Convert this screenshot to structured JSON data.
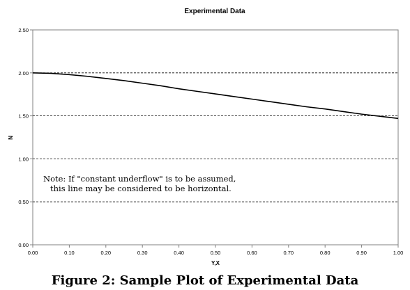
{
  "chart_data": {
    "type": "line",
    "title": "Experimental Data",
    "xlabel": "Y,X",
    "ylabel": "N",
    "xlim": [
      0.0,
      1.0
    ],
    "ylim": [
      0.0,
      2.5
    ],
    "x_ticks": [
      "0.00",
      "0.10",
      "0.20",
      "0.30",
      "0.40",
      "0.50",
      "0.60",
      "0.70",
      "0.80",
      "0.90",
      "1.00"
    ],
    "y_ticks": [
      "0.00",
      "0.50",
      "1.00",
      "1.50",
      "2.00",
      "2.50"
    ],
    "grid": "horizontal-dashed",
    "legend": "none",
    "series": [
      {
        "color": "#000000",
        "x": [
          0.0,
          0.05,
          0.1,
          0.15,
          0.2,
          0.25,
          0.3,
          0.35,
          0.4,
          0.45,
          0.5,
          0.55,
          0.6,
          0.65,
          0.7,
          0.75,
          0.8,
          0.85,
          0.9,
          0.95,
          1.0
        ],
        "y": [
          2.0,
          1.995,
          1.98,
          1.96,
          1.935,
          1.91,
          1.88,
          1.85,
          1.815,
          1.785,
          1.755,
          1.725,
          1.695,
          1.665,
          1.635,
          1.605,
          1.58,
          1.55,
          1.52,
          1.495,
          1.47
        ]
      }
    ],
    "annotations": [
      "Note:  If \"constant underflow\" is to be assumed,",
      "this line may be considered to be horizontal."
    ]
  },
  "caption": "Figure 2: Sample Plot of Experimental Data"
}
